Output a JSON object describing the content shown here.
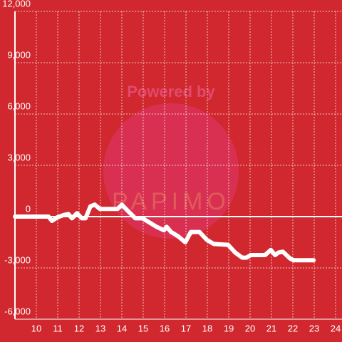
{
  "chart_data": {
    "type": "line",
    "watermark": [
      "Powered by",
      "PAPIMO"
    ],
    "x": [
      9.0,
      10.57,
      10.73,
      10.97,
      11.3,
      11.5,
      11.67,
      11.9,
      12.13,
      12.3,
      12.53,
      12.73,
      12.97,
      13.8,
      14.0,
      14.23,
      14.63,
      14.97,
      15.3,
      15.63,
      15.97,
      16.1,
      16.3,
      16.63,
      16.97,
      17.23,
      17.63,
      17.97,
      18.3,
      18.97,
      19.3,
      19.63,
      19.83,
      20.03,
      20.7,
      20.97,
      21.17,
      21.33,
      21.53,
      21.87,
      22.03,
      22.97
    ],
    "series": [
      {
        "color": "#ffffff",
        "values": [
          0,
          0,
          -250,
          -50,
          100,
          150,
          -100,
          200,
          -100,
          -100,
          600,
          700,
          450,
          450,
          700,
          400,
          -100,
          -100,
          -350,
          -600,
          -800,
          -600,
          -900,
          -1150,
          -1500,
          -900,
          -900,
          -1350,
          -1600,
          -1650,
          -2100,
          -2400,
          -2400,
          -2250,
          -2250,
          -1950,
          -2250,
          -2100,
          -2050,
          -2450,
          -2550,
          -2550
        ]
      }
    ],
    "xlim": [
      9,
      24.3
    ],
    "xticks": [
      10,
      11,
      12,
      13,
      14,
      15,
      16,
      17,
      18,
      19,
      20,
      21,
      22,
      23,
      24
    ],
    "ylim": [
      -6000,
      12000
    ],
    "yticks": [
      {
        "value": -6000,
        "label": "-6,000"
      },
      {
        "value": -3000,
        "label": "-3,000"
      },
      0,
      {
        "value": 3000,
        "label": "3,000"
      },
      {
        "value": 6000,
        "label": "6,000"
      },
      {
        "value": 9000,
        "label": "9,000"
      },
      {
        "value": 12000,
        "label": "12,000"
      }
    ],
    "grid": true
  }
}
